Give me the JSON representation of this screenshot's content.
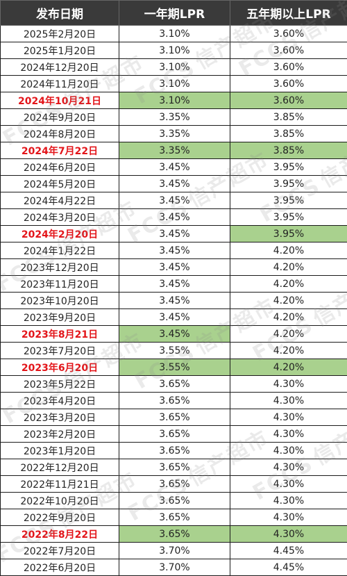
{
  "table": {
    "headers": [
      "发布日期",
      "一年期LPR",
      "五年期以上LPR"
    ],
    "rows": [
      {
        "date": "2025年2月20日",
        "one_year": "3.10%",
        "five_year": "3.60%",
        "highlight_date": false,
        "green_one": false,
        "green_five": false
      },
      {
        "date": "2025年1月20日",
        "one_year": "3.10%",
        "five_year": "3.60%",
        "highlight_date": false,
        "green_one": false,
        "green_five": false
      },
      {
        "date": "2024年12月20日",
        "one_year": "3.10%",
        "five_year": "3.60%",
        "highlight_date": false,
        "green_one": false,
        "green_five": false
      },
      {
        "date": "2024年11月20日",
        "one_year": "3.10%",
        "five_year": "3.60%",
        "highlight_date": false,
        "green_one": false,
        "green_five": false
      },
      {
        "date": "2024年10月21日",
        "one_year": "3.10%",
        "five_year": "3.60%",
        "highlight_date": true,
        "green_one": true,
        "green_five": true
      },
      {
        "date": "2024年9月20日",
        "one_year": "3.35%",
        "five_year": "3.85%",
        "highlight_date": false,
        "green_one": false,
        "green_five": false
      },
      {
        "date": "2024年8月20日",
        "one_year": "3.35%",
        "five_year": "3.85%",
        "highlight_date": false,
        "green_one": false,
        "green_five": false
      },
      {
        "date": "2024年7月22日",
        "one_year": "3.35%",
        "five_year": "3.85%",
        "highlight_date": true,
        "green_one": true,
        "green_five": true
      },
      {
        "date": "2024年6月20日",
        "one_year": "3.45%",
        "five_year": "3.95%",
        "highlight_date": false,
        "green_one": false,
        "green_five": false
      },
      {
        "date": "2024年5月20日",
        "one_year": "3.45%",
        "five_year": "3.95%",
        "highlight_date": false,
        "green_one": false,
        "green_five": false
      },
      {
        "date": "2024年4月22日",
        "one_year": "3.45%",
        "five_year": "3.95%",
        "highlight_date": false,
        "green_one": false,
        "green_five": false
      },
      {
        "date": "2024年3月20日",
        "one_year": "3.45%",
        "five_year": "3.95%",
        "highlight_date": false,
        "green_one": false,
        "green_five": false
      },
      {
        "date": "2024年2月20日",
        "one_year": "3.45%",
        "five_year": "3.95%",
        "highlight_date": true,
        "green_one": false,
        "green_five": true
      },
      {
        "date": "2024年1月22日",
        "one_year": "3.45%",
        "five_year": "4.20%",
        "highlight_date": false,
        "green_one": false,
        "green_five": false
      },
      {
        "date": "2023年12月20日",
        "one_year": "3.45%",
        "five_year": "4.20%",
        "highlight_date": false,
        "green_one": false,
        "green_five": false
      },
      {
        "date": "2023年11月20日",
        "one_year": "3.45%",
        "five_year": "4.20%",
        "highlight_date": false,
        "green_one": false,
        "green_five": false
      },
      {
        "date": "2023年10月20日",
        "one_year": "3.45%",
        "five_year": "4.20%",
        "highlight_date": false,
        "green_one": false,
        "green_five": false
      },
      {
        "date": "2023年9月20日",
        "one_year": "3.45%",
        "five_year": "4.20%",
        "highlight_date": false,
        "green_one": false,
        "green_five": false
      },
      {
        "date": "2023年8月21日",
        "one_year": "3.45%",
        "five_year": "4.20%",
        "highlight_date": true,
        "green_one": true,
        "green_five": false
      },
      {
        "date": "2023年7月20日",
        "one_year": "3.55%",
        "five_year": "4.20%",
        "highlight_date": false,
        "green_one": false,
        "green_five": false
      },
      {
        "date": "2023年6月20日",
        "one_year": "3.55%",
        "five_year": "4.20%",
        "highlight_date": true,
        "green_one": true,
        "green_five": true
      },
      {
        "date": "2023年5月22日",
        "one_year": "3.65%",
        "five_year": "4.30%",
        "highlight_date": false,
        "green_one": false,
        "green_five": false
      },
      {
        "date": "2023年4月20日",
        "one_year": "3.65%",
        "five_year": "4.30%",
        "highlight_date": false,
        "green_one": false,
        "green_five": false
      },
      {
        "date": "2023年3月20日",
        "one_year": "3.65%",
        "five_year": "4.30%",
        "highlight_date": false,
        "green_one": false,
        "green_five": false
      },
      {
        "date": "2023年2月20日",
        "one_year": "3.65%",
        "five_year": "4.30%",
        "highlight_date": false,
        "green_one": false,
        "green_five": false
      },
      {
        "date": "2023年1月20日",
        "one_year": "3.65%",
        "five_year": "4.30%",
        "highlight_date": false,
        "green_one": false,
        "green_five": false
      },
      {
        "date": "2022年12月20日",
        "one_year": "3.65%",
        "five_year": "4.30%",
        "highlight_date": false,
        "green_one": false,
        "green_five": false
      },
      {
        "date": "2022年11月21日",
        "one_year": "3.65%",
        "five_year": "4.30%",
        "highlight_date": false,
        "green_one": false,
        "green_five": false
      },
      {
        "date": "2022年10月20日",
        "one_year": "3.65%",
        "five_year": "4.30%",
        "highlight_date": false,
        "green_one": false,
        "green_five": false
      },
      {
        "date": "2022年9月20日",
        "one_year": "3.65%",
        "five_year": "4.30%",
        "highlight_date": false,
        "green_one": false,
        "green_five": false
      },
      {
        "date": "2022年8月22日",
        "one_year": "3.65%",
        "five_year": "4.30%",
        "highlight_date": true,
        "green_one": true,
        "green_five": true
      },
      {
        "date": "2022年7月20日",
        "one_year": "3.70%",
        "five_year": "4.45%",
        "highlight_date": false,
        "green_one": false,
        "green_five": false
      },
      {
        "date": "2022年6月20日",
        "one_year": "3.70%",
        "five_year": "4.45%",
        "highlight_date": false,
        "green_one": false,
        "green_five": false
      }
    ]
  },
  "watermark": {
    "logo_text": "FCCS",
    "brand_text": "信产超市"
  },
  "colors": {
    "header_bg": "#3a3a3a",
    "highlight_date": "#e3151a",
    "green_fill": "#a9d18e"
  }
}
